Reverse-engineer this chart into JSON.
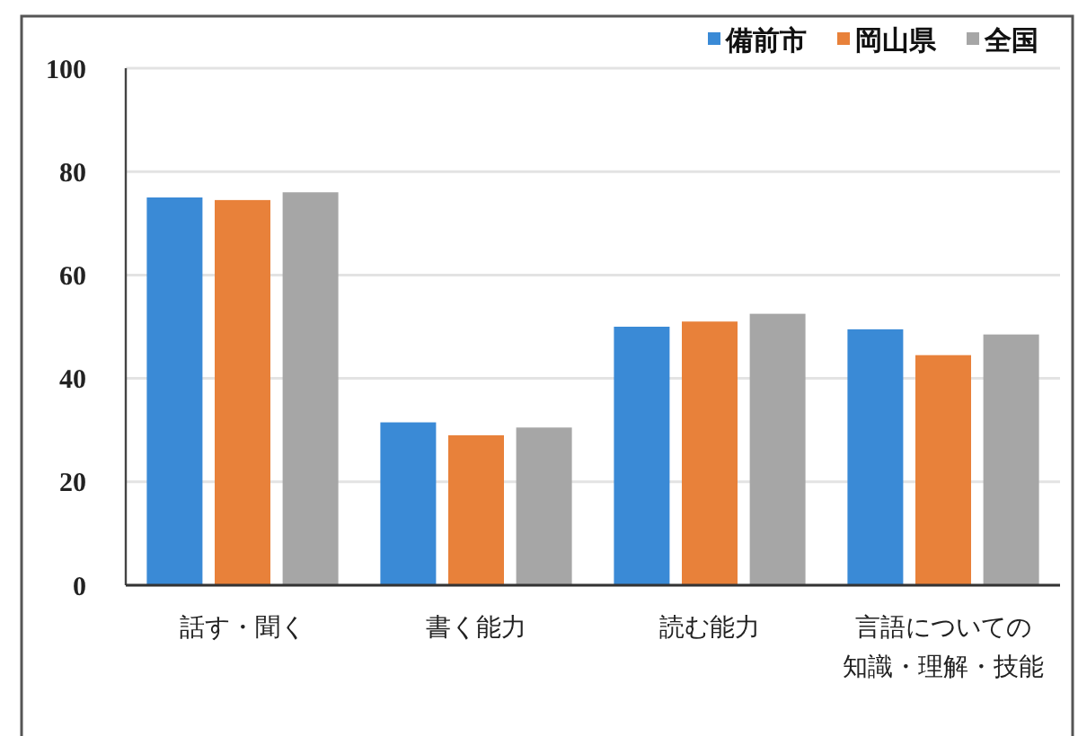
{
  "chart_data": {
    "type": "bar",
    "categories": [
      "話す・聞く",
      "書く能力",
      "読む能力",
      "言語についての知識・理解・技能"
    ],
    "series": [
      {
        "name": "備前市",
        "color": "#3a8ad6",
        "values": [
          75,
          31.5,
          50,
          49.5
        ]
      },
      {
        "name": "岡山県",
        "color": "#e8813a",
        "values": [
          74.5,
          29,
          51,
          44.5
        ]
      },
      {
        "name": "全国",
        "color": "#a6a6a6",
        "values": [
          76,
          30.5,
          52.5,
          48.5
        ]
      }
    ],
    "ylim": [
      0,
      100
    ],
    "yticks": [
      0,
      20,
      40,
      60,
      80,
      100
    ],
    "grid": "y",
    "legend": "top right"
  }
}
